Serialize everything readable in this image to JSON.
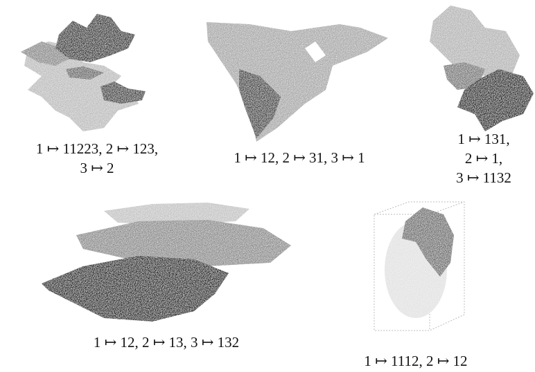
{
  "figures": [
    {
      "caption": [
        "1 ↦ 11223, 2 ↦ 123,",
        "3 ↦ 2"
      ]
    },
    {
      "caption": [
        "1 ↦ 12, 2 ↦ 31, 3 ↦ 1"
      ]
    },
    {
      "caption": [
        "1 ↦ 131,",
        "2 ↦ 1,",
        "3 ↦ 1132"
      ]
    },
    {
      "caption": [
        "1 ↦ 12, 2 ↦ 13, 3 ↦ 132"
      ]
    },
    {
      "caption": [
        "1 ↦ 1112, 2 ↦ 12"
      ]
    }
  ]
}
